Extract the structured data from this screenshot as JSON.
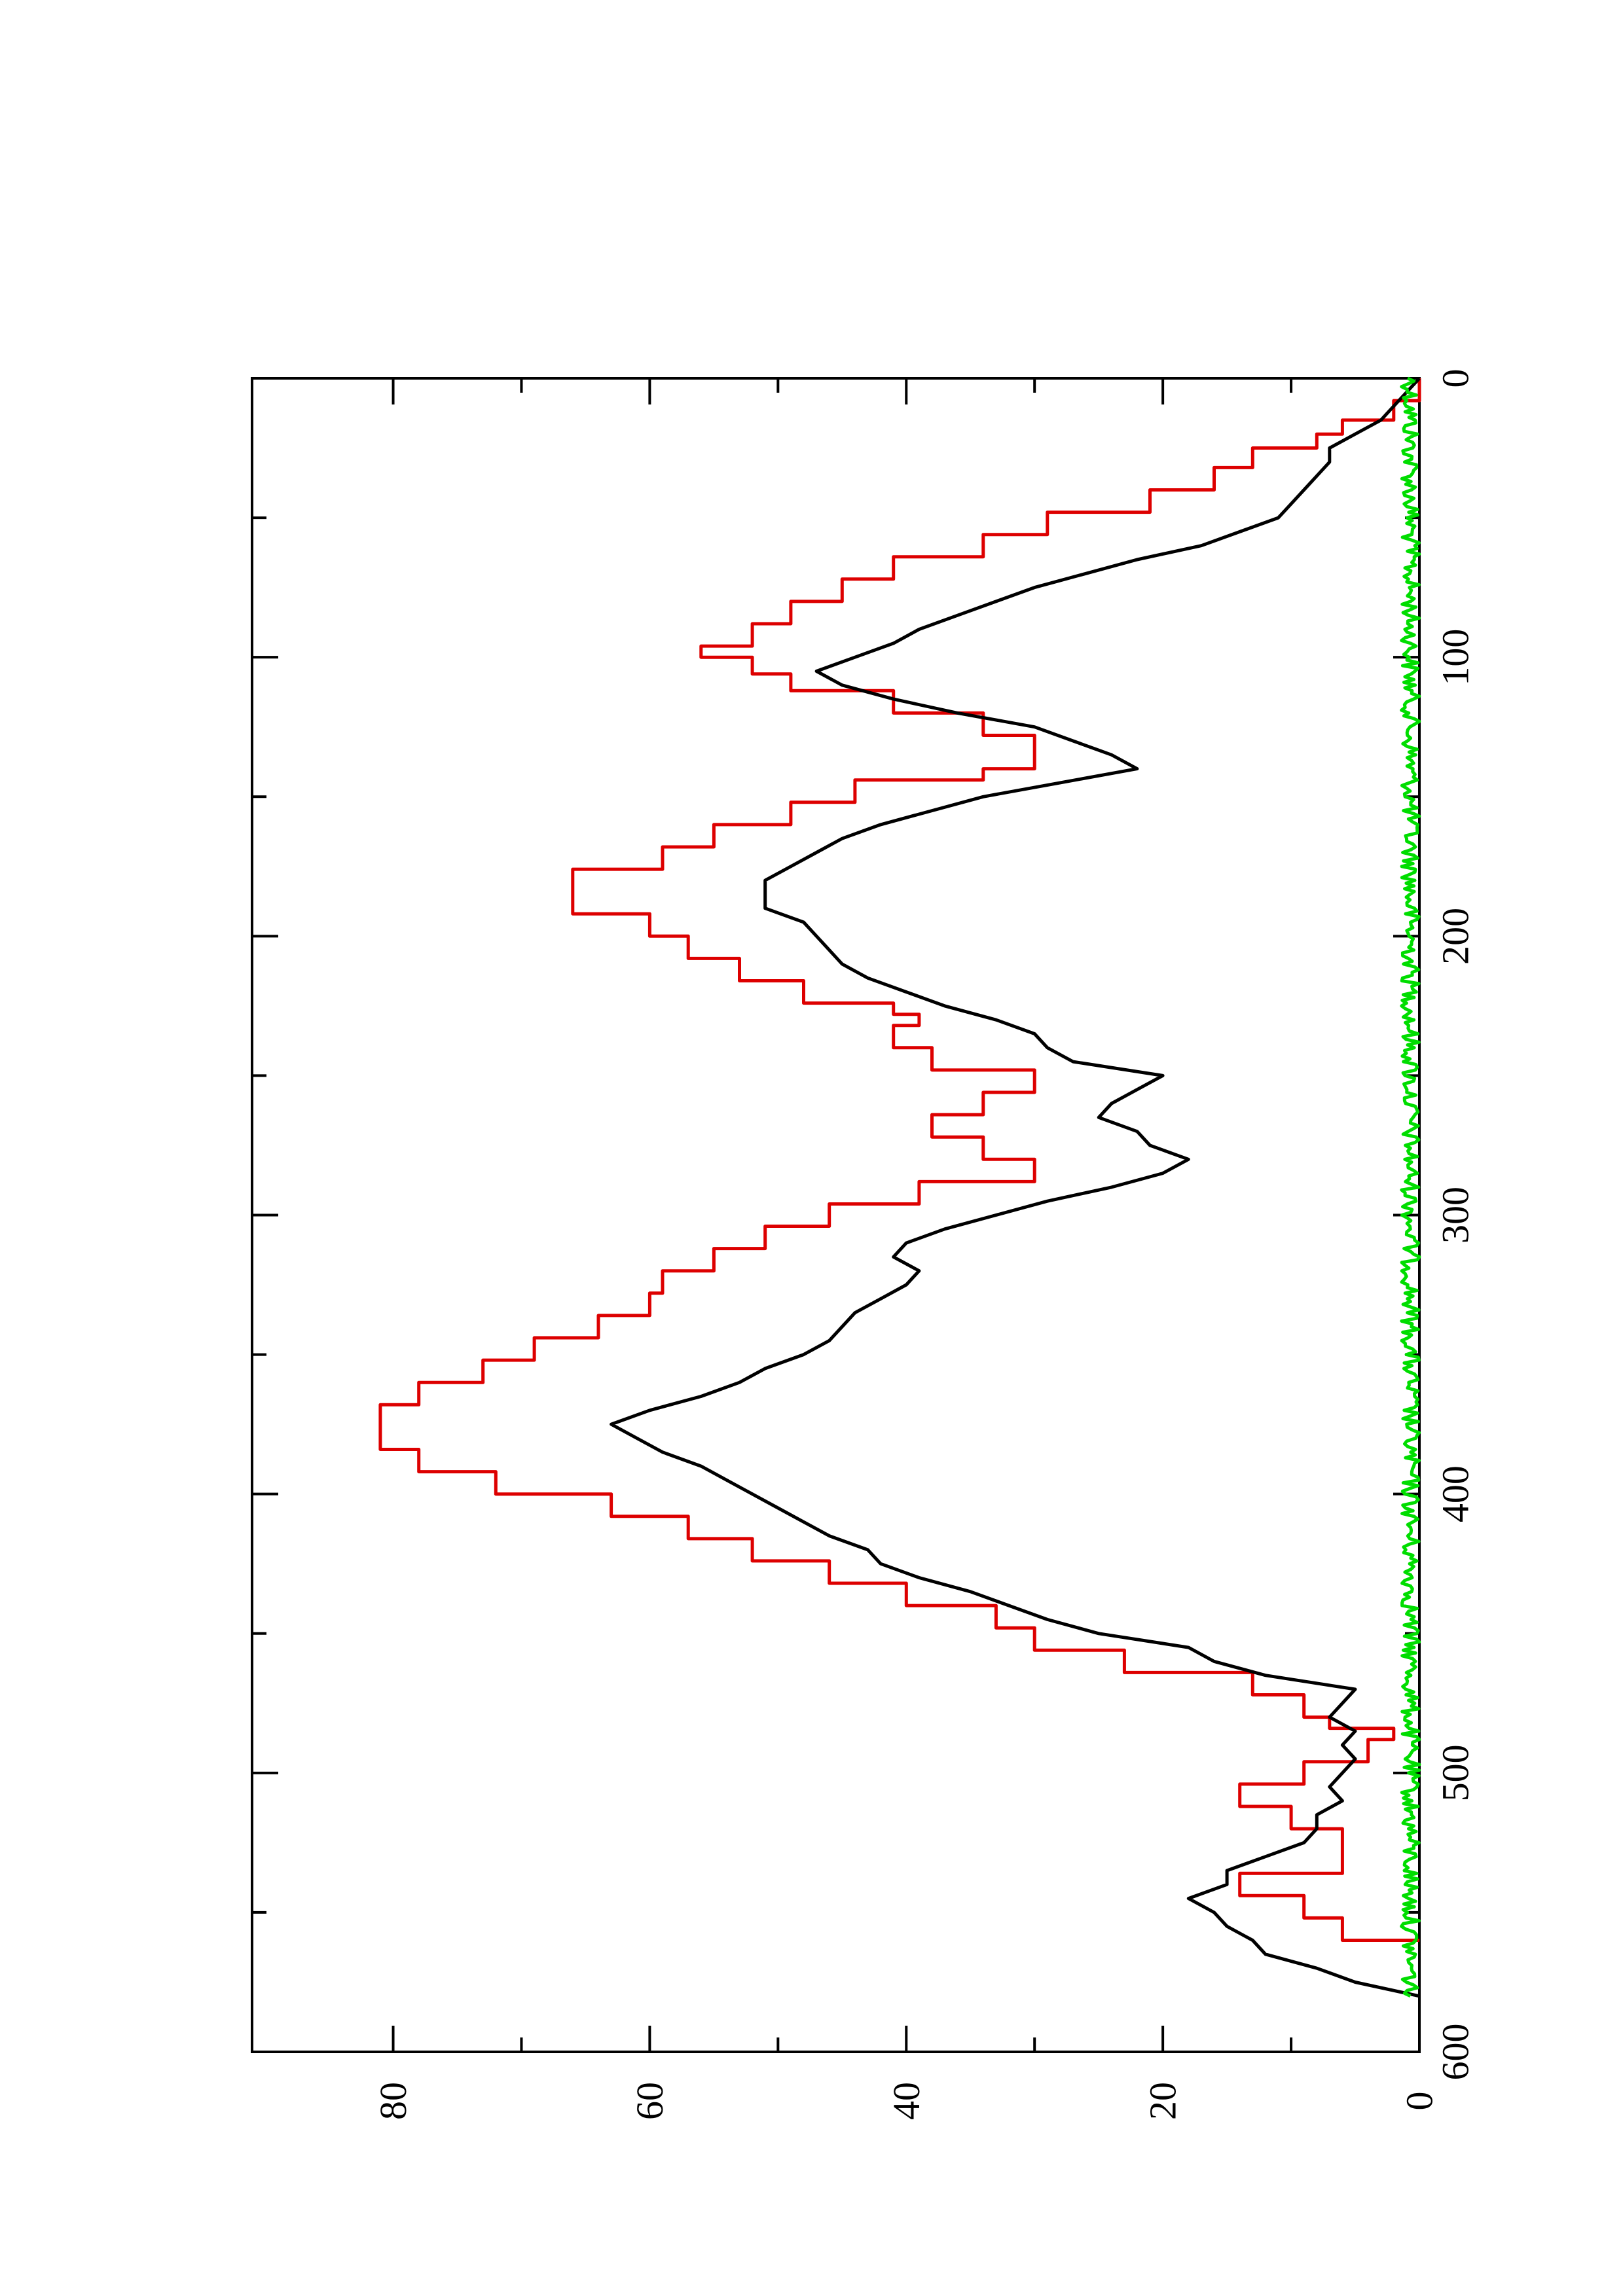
{
  "chart_data": {
    "type": "line",
    "orientation": "rotated-90-ccw",
    "title": "",
    "xlabel": "",
    "ylabel": "",
    "grid": false,
    "legend": "none",
    "xlim": [
      0,
      600
    ],
    "ylim": [
      0,
      91
    ],
    "x_ticks": [
      0,
      100,
      200,
      300,
      400,
      500,
      600
    ],
    "x_tick_labels": [
      "0",
      "100",
      "200",
      "300",
      "400",
      "500",
      "600"
    ],
    "x_minor_ticks": [
      50,
      150,
      250,
      350,
      450,
      550
    ],
    "y_ticks": [
      0,
      20,
      40,
      60,
      80
    ],
    "y_tick_labels": [
      "0",
      "20",
      "40",
      "60",
      "80"
    ],
    "y_minor_ticks": [
      10,
      30,
      50,
      70
    ],
    "series": [
      {
        "color": "#dd0000",
        "x": [
          0,
          8,
          8,
          15,
          15,
          20,
          20,
          25,
          25,
          32,
          32,
          40,
          40,
          48,
          48,
          56,
          56,
          64,
          64,
          72,
          72,
          80,
          80,
          88,
          88,
          96,
          96,
          100,
          100,
          106,
          106,
          112,
          112,
          120,
          120,
          128,
          128,
          136,
          136,
          140,
          140,
          144,
          144,
          152,
          152,
          160,
          160,
          168,
          168,
          176,
          176,
          184,
          184,
          192,
          192,
          200,
          200,
          208,
          208,
          216,
          216,
          224,
          224,
          228,
          228,
          232,
          232,
          240,
          240,
          248,
          248,
          256,
          256,
          264,
          264,
          272,
          272,
          280,
          280,
          288,
          288,
          296,
          296,
          304,
          304,
          312,
          312,
          320,
          320,
          328,
          328,
          336,
          336,
          344,
          344,
          352,
          352,
          360,
          360,
          368,
          368,
          376,
          376,
          384,
          384,
          392,
          392,
          400,
          400,
          408,
          408,
          416,
          416,
          424,
          424,
          432,
          432,
          440,
          440,
          448,
          448,
          456,
          456,
          464,
          464,
          472,
          472,
          480,
          480,
          484,
          484,
          488,
          488,
          496,
          496,
          504,
          504,
          512,
          512,
          520,
          520,
          528,
          528,
          536,
          536,
          544,
          544,
          552,
          552,
          560,
          560
        ],
        "y": [
          0,
          0,
          2,
          2,
          6,
          6,
          8,
          8,
          13,
          13,
          16,
          16,
          21,
          21,
          29,
          29,
          34,
          34,
          41,
          41,
          45,
          45,
          49,
          49,
          52,
          52,
          56,
          56,
          52,
          52,
          49,
          49,
          41,
          41,
          34,
          34,
          30,
          30,
          30,
          30,
          34,
          34,
          44,
          44,
          49,
          49,
          55,
          55,
          59,
          59,
          66,
          66,
          66,
          66,
          60,
          60,
          57,
          57,
          53,
          53,
          48,
          48,
          41,
          41,
          39,
          39,
          41,
          41,
          38,
          38,
          30,
          30,
          34,
          34,
          38,
          38,
          34,
          34,
          30,
          30,
          39,
          39,
          46,
          46,
          51,
          51,
          55,
          55,
          59,
          59,
          60,
          60,
          64,
          64,
          69,
          69,
          73,
          73,
          78,
          78,
          81,
          81,
          81,
          81,
          78,
          78,
          72,
          72,
          63,
          63,
          57,
          57,
          52,
          52,
          46,
          46,
          40,
          40,
          33,
          33,
          30,
          30,
          23,
          23,
          13,
          13,
          9,
          9,
          7,
          7,
          2,
          2,
          4,
          4,
          9,
          9,
          14,
          14,
          10,
          10,
          6,
          6,
          6,
          6,
          14,
          14,
          9,
          9,
          6,
          6,
          0
        ]
      },
      {
        "color": "#000000",
        "x": [
          0,
          5,
          10,
          15,
          20,
          25,
          30,
          35,
          40,
          45,
          50,
          55,
          60,
          65,
          70,
          75,
          80,
          85,
          90,
          95,
          100,
          105,
          110,
          115,
          120,
          125,
          130,
          135,
          140,
          145,
          150,
          155,
          160,
          165,
          170,
          175,
          180,
          185,
          190,
          195,
          200,
          205,
          210,
          215,
          220,
          225,
          230,
          235,
          240,
          245,
          250,
          255,
          260,
          265,
          270,
          275,
          280,
          285,
          290,
          295,
          300,
          305,
          310,
          315,
          320,
          325,
          330,
          335,
          340,
          345,
          350,
          355,
          360,
          365,
          370,
          375,
          380,
          385,
          390,
          395,
          400,
          405,
          410,
          415,
          420,
          425,
          430,
          435,
          440,
          445,
          450,
          455,
          460,
          465,
          470,
          475,
          480,
          485,
          490,
          495,
          500,
          505,
          510,
          515,
          520,
          525,
          530,
          535,
          540,
          545,
          550,
          555,
          560,
          565,
          570,
          575,
          580
        ],
        "y": [
          0,
          1,
          2,
          3,
          5,
          7,
          7,
          8,
          9,
          10,
          11,
          14,
          17,
          22,
          26,
          30,
          33,
          36,
          39,
          41,
          44,
          47,
          45,
          41,
          36,
          30,
          27,
          24,
          22,
          28,
          34,
          38,
          42,
          45,
          47,
          49,
          51,
          51,
          51,
          48,
          47,
          46,
          45,
          43,
          40,
          37,
          33,
          30,
          29,
          27,
          20,
          22,
          24,
          25,
          22,
          21,
          18,
          20,
          24,
          29,
          33,
          37,
          40,
          41,
          39,
          40,
          42,
          44,
          45,
          46,
          48,
          51,
          53,
          56,
          60,
          63,
          61,
          59,
          56,
          54,
          52,
          50,
          48,
          46,
          43,
          42,
          39,
          35,
          32,
          29,
          25,
          18,
          16,
          12,
          5,
          6,
          7,
          5,
          6,
          5,
          6,
          7,
          6,
          8,
          8,
          9,
          12,
          15,
          15,
          18,
          16,
          15,
          13,
          12,
          8,
          5,
          0
        ]
      },
      {
        "color": "#00dd00",
        "noise": true,
        "x_start": 0,
        "x_end": 580,
        "baseline": 0.7,
        "amplitude": 0.7
      }
    ]
  }
}
